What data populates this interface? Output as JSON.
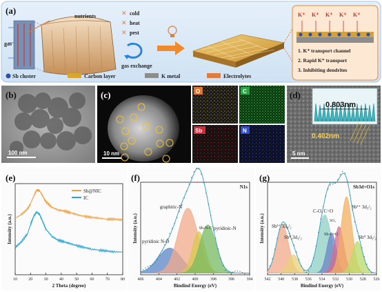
{
  "figure": {
    "panel_a": {
      "letter": "(a)",
      "labels": {
        "gas": "gas",
        "nutrients": "nutrients",
        "cold": "cold",
        "heat": "heat",
        "pest": "pest",
        "gas_exchange": "gas exchange"
      },
      "legend": [
        "Sb cluster",
        "Carbon layer",
        "K metal",
        "Electrolytes"
      ],
      "legend_colors": [
        "#2b4fa3",
        "#d9a52e",
        "#8d8d8d",
        "#e07d3c"
      ],
      "kplus": [
        "K⁺",
        "K⁺",
        "K⁺",
        "K⁺",
        "K⁺"
      ],
      "features": [
        "1. K⁺ transport channel",
        "2. Rapid K⁺ transport",
        "3. Inhibiting dendrites"
      ]
    },
    "panel_b": {
      "letter": "(b)",
      "scale_bar": "100 nm"
    },
    "panel_c": {
      "letter": "(c)",
      "scale_bar": "10 nm",
      "maps": [
        {
          "label": "O",
          "color": "#e8742a"
        },
        {
          "label": "C",
          "color": "#27a844"
        },
        {
          "label": "Sb",
          "color": "#d62a3b"
        },
        {
          "label": "N",
          "color": "#2f4fd1"
        }
      ]
    },
    "panel_d": {
      "letter": "(d)",
      "scale_bar": "5 nm",
      "inset_spacing": "0.803nm",
      "lattice_spacing": "0.402nm"
    },
    "panel_e": {
      "letter": "(e)"
    },
    "panel_f": {
      "letter": "(f)"
    },
    "panel_g": {
      "letter": "(g)"
    }
  },
  "chart_data": [
    {
      "type": "line",
      "xlabel": "2 Theta (degree)",
      "ylabel": "Intensity (a.u.)",
      "xlim": [
        10,
        80
      ],
      "xticks": [
        10,
        20,
        30,
        40,
        50,
        60,
        70,
        80
      ],
      "series": [
        {
          "name": "Sb@NIC",
          "color": "#f0a040",
          "x": [
            10,
            14,
            18,
            20,
            22,
            24,
            26,
            28,
            30,
            34,
            38,
            42,
            46,
            50,
            55,
            60,
            65,
            70,
            75,
            80
          ],
          "y": [
            0.62,
            0.66,
            0.72,
            0.78,
            0.86,
            0.93,
            0.92,
            0.86,
            0.8,
            0.74,
            0.71,
            0.7,
            0.68,
            0.66,
            0.64,
            0.63,
            0.62,
            0.61,
            0.61,
            0.6
          ]
        },
        {
          "name": "IC",
          "color": "#2aa3d4",
          "x": [
            10,
            14,
            18,
            20,
            22,
            24,
            26,
            28,
            30,
            34,
            38,
            42,
            46,
            50,
            55,
            60,
            65,
            70,
            75,
            80
          ],
          "y": [
            0.3,
            0.36,
            0.45,
            0.55,
            0.64,
            0.69,
            0.66,
            0.58,
            0.5,
            0.42,
            0.38,
            0.36,
            0.34,
            0.32,
            0.3,
            0.28,
            0.27,
            0.26,
            0.25,
            0.25
          ]
        }
      ]
    },
    {
      "type": "area",
      "title": "N1s",
      "xlabel": "Bindind Energy (eV)",
      "ylabel": "Intensity (a.u.)",
      "xlim": [
        406,
        394
      ],
      "xticks": [
        406,
        404,
        402,
        400,
        398,
        396,
        394
      ],
      "peaks": [
        {
          "name": "pyridinic N-O",
          "center": 402.8,
          "height": 0.3,
          "width": 1.3,
          "color": "#5b86c8"
        },
        {
          "name": "graphitic-N",
          "center": 400.8,
          "height": 0.78,
          "width": 1.1,
          "color": "#f3a98a"
        },
        {
          "name": "Sb-N-C",
          "center": 399.6,
          "height": 0.5,
          "width": 0.7,
          "color": "#d8c84f"
        },
        {
          "name": "pyridinic-N",
          "center": 398.6,
          "height": 0.58,
          "width": 0.9,
          "color": "#78bb62"
        }
      ]
    },
    {
      "type": "area",
      "title": "Sb3d+O1s",
      "xlabel": "Bindind Energy (eV)",
      "ylabel": "Intensity (a.u.)",
      "xlim": [
        542,
        526
      ],
      "xticks": [
        542,
        540,
        538,
        536,
        534,
        532,
        530,
        528,
        526
      ],
      "peaks": [
        {
          "name": "Sb³⁺ 3d₃/₂",
          "center": 539.8,
          "height": 0.58,
          "width": 0.9,
          "color": "#f3a98a"
        },
        {
          "name": "Sb⁰ 3d₃/₂",
          "center": 538.2,
          "height": 0.22,
          "width": 0.8,
          "color": "#e8d27a"
        },
        {
          "name": "C-O, C=O",
          "center": 533.6,
          "height": 0.7,
          "width": 1.0,
          "color": "#8fd0c4"
        },
        {
          "name": "SO₃",
          "center": 532.6,
          "height": 0.48,
          "width": 0.7,
          "color": "#6a85c7"
        },
        {
          "name": "Sb-C=O",
          "center": 531.5,
          "height": 0.56,
          "width": 0.7,
          "color": "#d86a8e"
        },
        {
          "name": "Sb³⁺ 3d₅/₂",
          "center": 530.4,
          "height": 0.92,
          "width": 0.8,
          "color": "#f3b060"
        },
        {
          "name": "Sb⁰ 3d₅/₂",
          "center": 528.8,
          "height": 0.38,
          "width": 0.8,
          "color": "#b9dc6a"
        }
      ]
    }
  ]
}
